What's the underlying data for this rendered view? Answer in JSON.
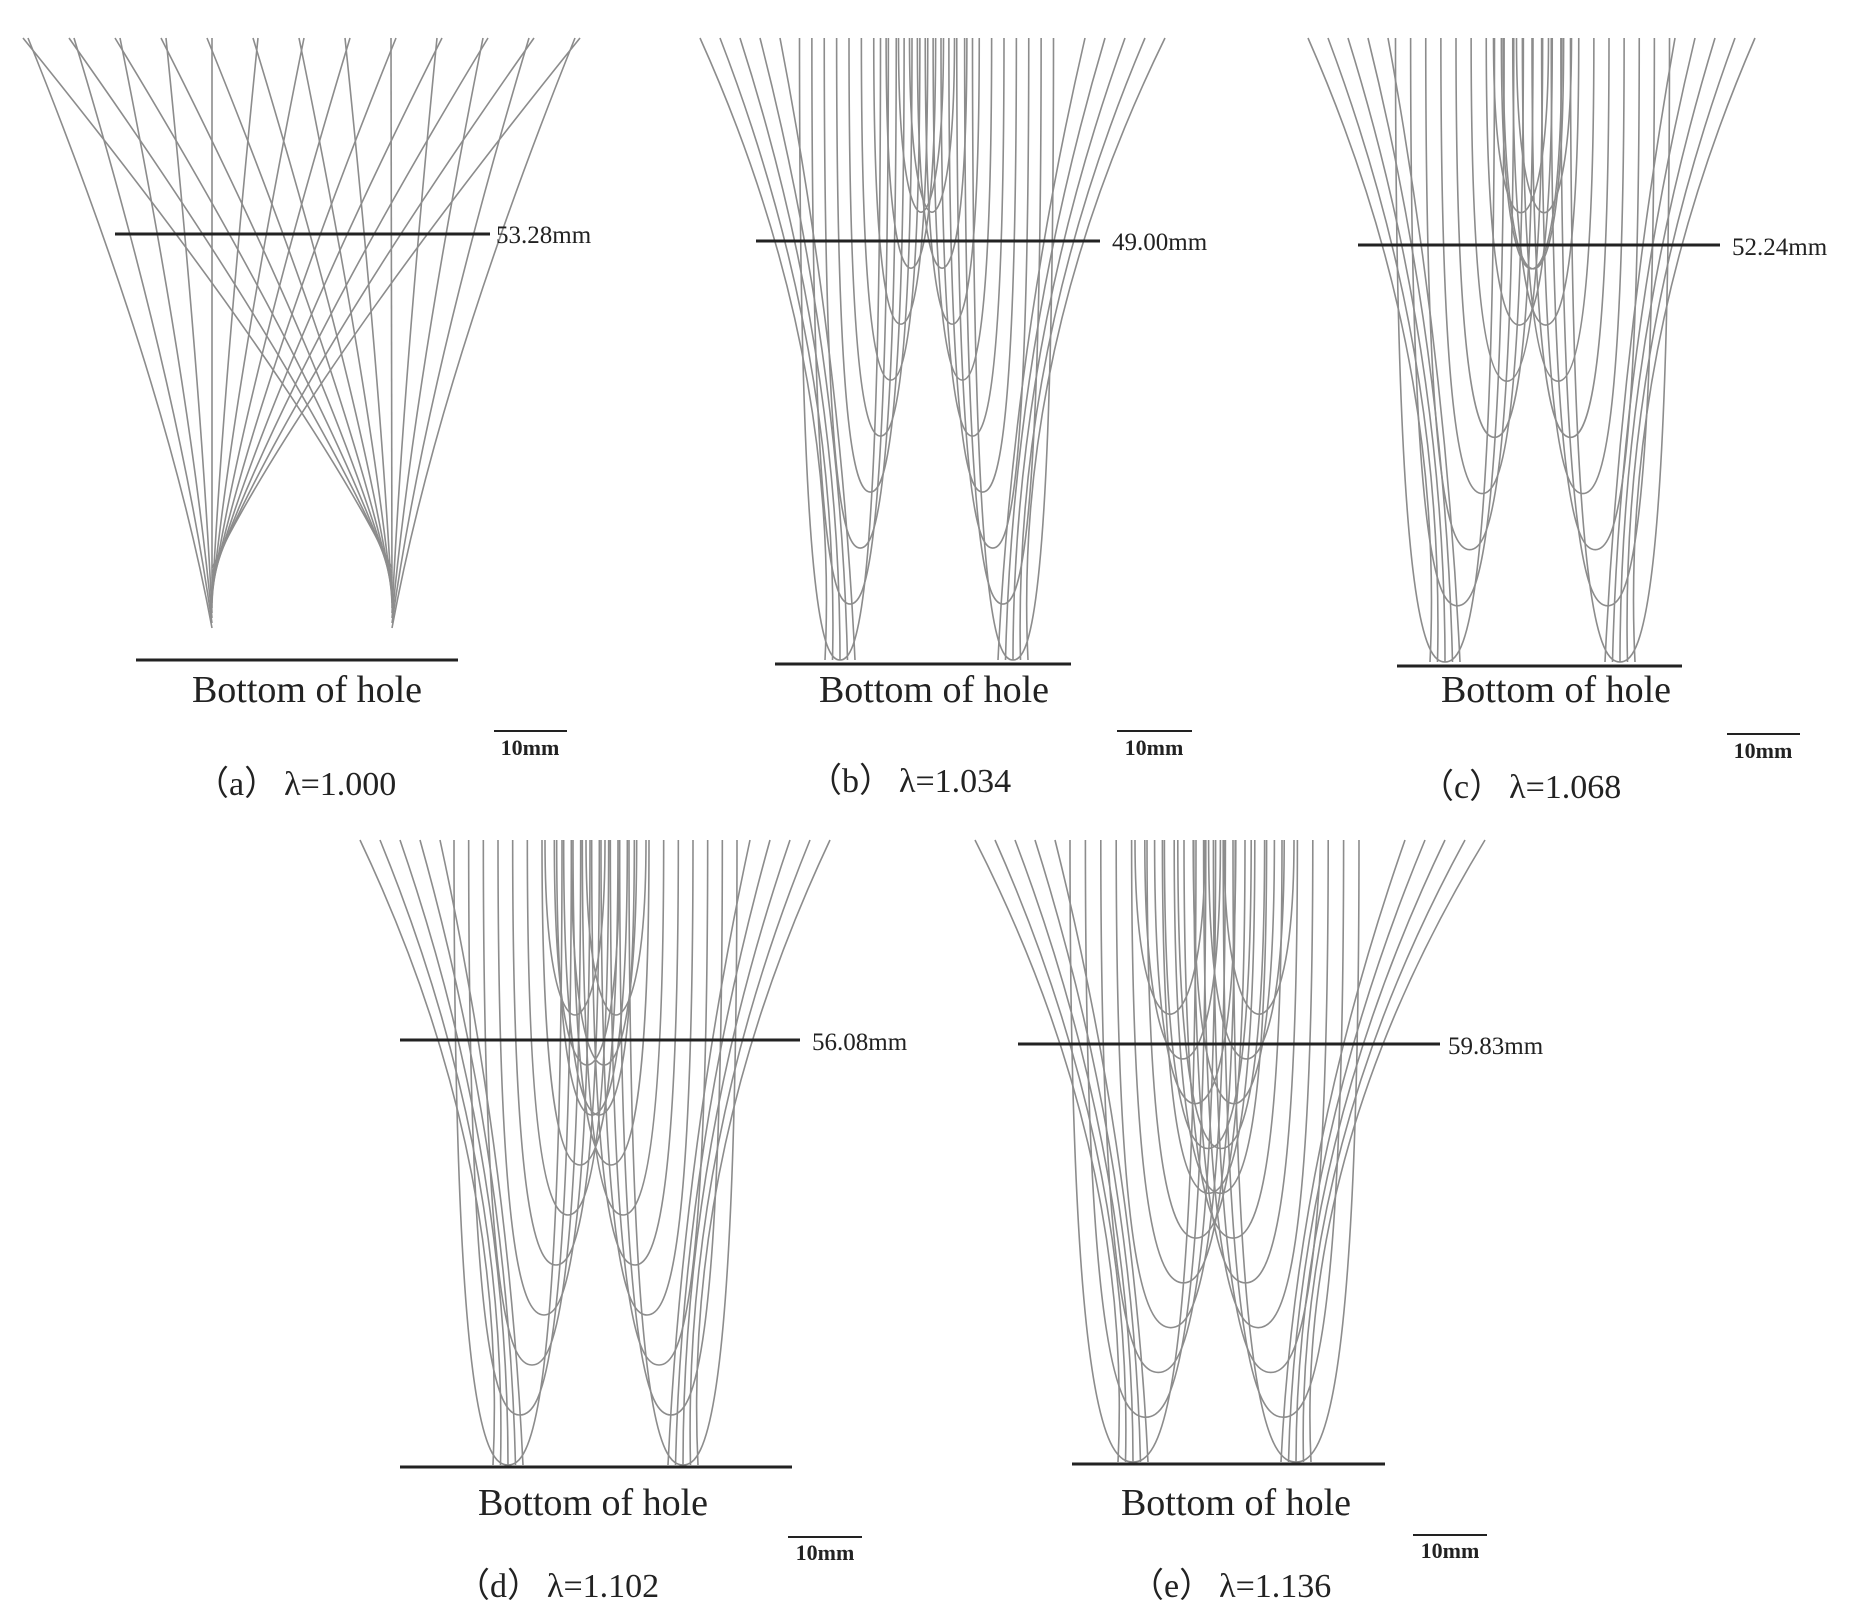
{
  "scale_label": "10mm",
  "bottom_label": "Bottom of hole",
  "line_color": "#8c8c8c",
  "panels": [
    {
      "id": "a",
      "caption_tag": "（a）",
      "caption_lambda": "λ=1.000",
      "dimension_label": "53.28mm",
      "style": "hyperbolic"
    },
    {
      "id": "b",
      "caption_tag": "（b）",
      "caption_lambda": "λ=1.034",
      "dimension_label": "49.00mm",
      "style": "loops"
    },
    {
      "id": "c",
      "caption_tag": "（c）",
      "caption_lambda": "λ=1.068",
      "dimension_label": "52.24mm",
      "style": "loops"
    },
    {
      "id": "d",
      "caption_tag": "（d）",
      "caption_lambda": "λ=1.102",
      "dimension_label": "56.08mm",
      "style": "loops"
    },
    {
      "id": "e",
      "caption_tag": "（e）",
      "caption_lambda": "λ=1.136",
      "dimension_label": "59.83mm",
      "style": "loops"
    }
  ]
}
